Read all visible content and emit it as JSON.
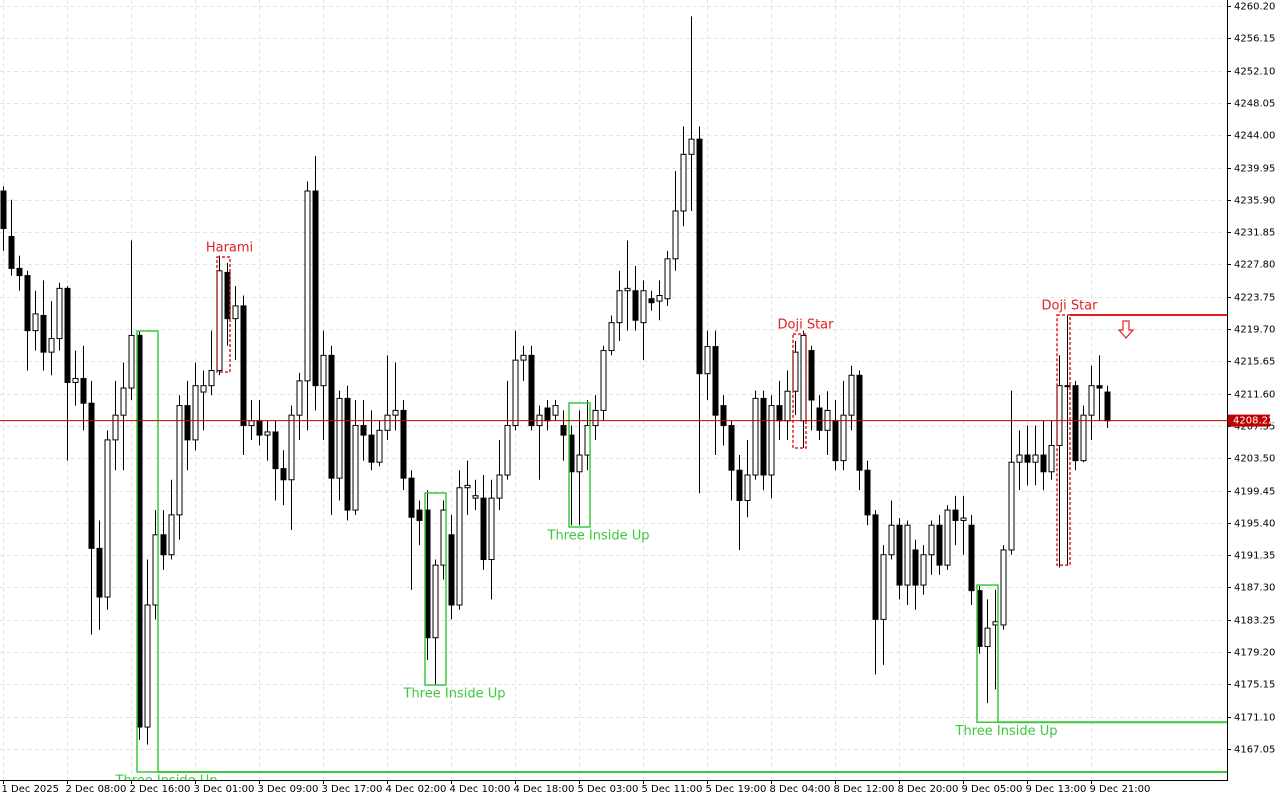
{
  "chart_data": {
    "type": "candlestick",
    "open": [
      4237.0,
      4231.3,
      4227.3,
      4226.4,
      4219.5,
      4221.4,
      4216.8,
      4218.5,
      4224.8,
      4213.0,
      4213.5,
      4210.4,
      4192.2,
      4186.1,
      4205.8,
      4208.9,
      4212.3,
      4218.9,
      4169.8,
      4185.1,
      4193.9,
      4191.4,
      4196.4,
      4210.1,
      4205.8,
      4211.8,
      4212.6,
      4214.5,
      4226.8,
      4221.0,
      4222.6,
      4207.6,
      4208.2,
      4206.4,
      4206.8,
      4202.2,
      4200.8,
      4208.9,
      4213.2,
      4237.0,
      4212.6,
      4216.4,
      4201.0,
      4211.0,
      4197.0,
      4207.6,
      4206.4,
      4203.0,
      4207.0,
      4208.9,
      4209.5,
      4201.0,
      4197.0,
      4197.0,
      4181.0,
      4190.1,
      4193.9,
      4185.1,
      4199.8,
      4198.5,
      4198.5,
      4190.8,
      4198.5,
      4201.4,
      4207.6,
      4215.8,
      4216.4,
      4207.6,
      4209.8,
      4208.9,
      4207.6,
      4206.4,
      4201.8,
      4203.9,
      4207.6,
      4209.5,
      4217.0,
      4220.5,
      4224.5,
      4224.5,
      4220.5,
      4223.5,
      4223.2,
      4223.5,
      4228.5,
      4234.5,
      4241.6,
      4243.5,
      4214.1,
      4217.5,
      4210.1,
      4207.6,
      4202.0,
      4198.2,
      4201.4,
      4211.0,
      4201.4,
      4210.1,
      4208.2,
      4211.9,
      4208.2,
      4217.0,
      4209.8,
      4207.0,
      4208.2,
      4203.2,
      4208.9,
      4213.9,
      4202.0,
      4196.4,
      4183.3,
      4191.4,
      4195.1,
      4187.6,
      4192.0,
      4187.6,
      4191.4,
      4195.1,
      4190.1,
      4197.0,
      4195.7,
      4195.1,
      4186.9,
      4179.9,
      4182.6,
      4182.6,
      4192.0,
      4203.0,
      4203.9,
      4203.0,
      4203.9,
      4201.8,
      4205.1,
      4212.6,
      4212.6,
      4203.2,
      4208.9,
      4212.6,
      4211.8
    ],
    "high": [
      4237.6,
      4235.9,
      4228.9,
      4227.0,
      4224.5,
      4225.8,
      4223.2,
      4225.5,
      4225.1,
      4217.0,
      4217.6,
      4213.2,
      4195.7,
      4207.0,
      4213.2,
      4215.5,
      4230.8,
      4219.5,
      4190.8,
      4197.0,
      4197.0,
      4200.8,
      4211.4,
      4213.2,
      4215.5,
      4214.5,
      4219.5,
      4228.9,
      4228.0,
      4225.1,
      4223.9,
      4210.8,
      4210.8,
      4208.2,
      4208.2,
      4204.5,
      4210.1,
      4214.2,
      4238.2,
      4241.4,
      4219.5,
      4217.6,
      4212.0,
      4212.6,
      4210.8,
      4210.8,
      4209.5,
      4208.2,
      4216.4,
      4215.5,
      4210.8,
      4202.0,
      4198.2,
      4199.5,
      4190.8,
      4198.2,
      4196.4,
      4202.0,
      4203.2,
      4200.8,
      4201.4,
      4200.8,
      4205.8,
      4213.2,
      4219.5,
      4217.6,
      4217.6,
      4210.1,
      4210.8,
      4210.8,
      4209.5,
      4207.6,
      4209.5,
      4210.8,
      4211.4,
      4217.6,
      4221.4,
      4227.0,
      4230.8,
      4227.6,
      4225.8,
      4224.5,
      4225.8,
      4229.5,
      4239.5,
      4245.1,
      4258.9,
      4245.1,
      4219.5,
      4219.5,
      4211.4,
      4208.2,
      4203.9,
      4205.8,
      4212.0,
      4212.0,
      4211.4,
      4213.2,
      4214.5,
      4218.2,
      4219.5,
      4217.6,
      4211.4,
      4211.9,
      4210.8,
      4213.2,
      4215.1,
      4214.5,
      4203.2,
      4197.0,
      4192.6,
      4198.2,
      4196.0,
      4195.7,
      4193.3,
      4192.6,
      4195.7,
      4196.4,
      4197.6,
      4198.8,
      4198.8,
      4196.4,
      4187.5,
      4185.8,
      4187.0,
      4192.6,
      4212.0,
      4207.0,
      4207.6,
      4207.6,
      4208.2,
      4208.2,
      4216.4,
      4221.4,
      4213.2,
      4210.1,
      4215.1,
      4216.4,
      4212.6
    ],
    "low": [
      4229.5,
      4226.4,
      4224.5,
      4214.5,
      4217.0,
      4214.5,
      4213.9,
      4217.0,
      4203.2,
      4210.1,
      4207.0,
      4181.4,
      4182.0,
      4184.5,
      4202.0,
      4202.0,
      4210.8,
      4168.2,
      4167.6,
      4183.3,
      4189.5,
      4190.8,
      4193.3,
      4202.0,
      4204.5,
      4207.0,
      4211.4,
      4213.9,
      4217.6,
      4215.8,
      4203.9,
      4205.8,
      4205.1,
      4203.2,
      4198.2,
      4197.6,
      4194.5,
      4205.8,
      4207.0,
      4209.5,
      4205.8,
      4196.4,
      4198.2,
      4195.7,
      4196.4,
      4203.2,
      4202.0,
      4202.5,
      4205.8,
      4207.0,
      4199.5,
      4187.0,
      4192.6,
      4178.2,
      4175.1,
      4188.3,
      4183.3,
      4184.5,
      4196.4,
      4197.0,
      4189.5,
      4185.8,
      4197.0,
      4200.8,
      4207.0,
      4213.2,
      4207.0,
      4200.8,
      4207.0,
      4208.2,
      4203.2,
      4195.1,
      4195.1,
      4202.0,
      4205.8,
      4208.2,
      4216.4,
      4218.2,
      4219.5,
      4219.5,
      4215.8,
      4222.0,
      4220.8,
      4222.6,
      4227.0,
      4232.6,
      4234.5,
      4199.1,
      4210.8,
      4203.9,
      4205.1,
      4198.2,
      4192.0,
      4196.1,
      4200.8,
      4199.5,
      4198.5,
      4205.8,
      4205.8,
      4208.9,
      4204.8,
      4207.0,
      4205.8,
      4203.9,
      4202.0,
      4202.0,
      4207.0,
      4199.5,
      4195.1,
      4176.4,
      4177.6,
      4190.8,
      4185.8,
      4185.1,
      4184.5,
      4186.4,
      4188.9,
      4188.9,
      4189.5,
      4192.6,
      4191.4,
      4185.1,
      4179.0,
      4172.8,
      4174.5,
      4182.0,
      4191.4,
      4199.5,
      4200.1,
      4200.1,
      4199.5,
      4200.8,
      4189.8,
      4190.1,
      4202.0,
      4203.0,
      4205.8,
      4208.2,
      4207.3
    ],
    "close": [
      4232.3,
      4227.3,
      4226.4,
      4219.5,
      4221.6,
      4216.8,
      4218.5,
      4224.8,
      4213.0,
      4213.5,
      4210.4,
      4192.2,
      4186.1,
      4205.8,
      4208.9,
      4212.3,
      4218.9,
      4169.8,
      4185.1,
      4193.9,
      4191.4,
      4196.4,
      4210.1,
      4205.8,
      4212.6,
      4212.6,
      4214.5,
      4227.0,
      4221.0,
      4222.6,
      4207.6,
      4208.2,
      4206.4,
      4206.8,
      4202.2,
      4200.8,
      4208.9,
      4213.2,
      4237.0,
      4212.6,
      4216.4,
      4201.0,
      4211.0,
      4197.0,
      4207.6,
      4206.4,
      4203.0,
      4207.0,
      4208.9,
      4209.5,
      4201.0,
      4196.1,
      4195.7,
      4181.0,
      4190.1,
      4197.0,
      4185.1,
      4199.8,
      4200.1,
      4198.8,
      4190.8,
      4198.5,
      4201.4,
      4207.6,
      4215.8,
      4216.4,
      4207.6,
      4208.9,
      4208.2,
      4210.1,
      4206.4,
      4201.8,
      4203.9,
      4207.6,
      4209.5,
      4217.0,
      4220.5,
      4224.5,
      4224.8,
      4220.8,
      4224.5,
      4223.0,
      4223.9,
      4228.5,
      4234.5,
      4241.6,
      4243.5,
      4214.1,
      4217.5,
      4208.9,
      4207.6,
      4202.0,
      4198.2,
      4201.4,
      4211.0,
      4201.4,
      4210.1,
      4208.2,
      4211.9,
      4216.8,
      4218.9,
      4210.8,
      4207.0,
      4209.5,
      4203.2,
      4208.9,
      4213.9,
      4202.0,
      4196.4,
      4183.3,
      4191.4,
      4195.1,
      4187.6,
      4195.1,
      4187.6,
      4191.4,
      4195.1,
      4190.1,
      4197.0,
      4195.7,
      4196.0,
      4186.9,
      4179.9,
      4182.2,
      4183.0,
      4192.0,
      4203.0,
      4203.9,
      4203.0,
      4203.9,
      4201.8,
      4205.1,
      4212.6,
      4212.5,
      4203.2,
      4208.9,
      4212.6,
      4212.3,
      4208.2
    ],
    "up_color": "#ffffff",
    "down_color": "#000000",
    "wick_color": "#000000",
    "xticks": [
      {
        "value": 0,
        "label": "1 Dec 2025"
      },
      {
        "value": 8,
        "label": "2 Dec 08:00"
      },
      {
        "value": 16,
        "label": "2 Dec 16:00"
      },
      {
        "value": 24,
        "label": "3 Dec 01:00"
      },
      {
        "value": 32,
        "label": "3 Dec 09:00"
      },
      {
        "value": 40,
        "label": "3 Dec 17:00"
      },
      {
        "value": 48,
        "label": "4 Dec 02:00"
      },
      {
        "value": 56,
        "label": "4 Dec 10:00"
      },
      {
        "value": 64,
        "label": "4 Dec 18:00"
      },
      {
        "value": 72,
        "label": "5 Dec 03:00"
      },
      {
        "value": 80,
        "label": "5 Dec 11:00"
      },
      {
        "value": 88,
        "label": "5 Dec 19:00"
      },
      {
        "value": 96,
        "label": "8 Dec 04:00"
      },
      {
        "value": 104,
        "label": "8 Dec 12:00"
      },
      {
        "value": 112,
        "label": "8 Dec 20:00"
      },
      {
        "value": 120,
        "label": "9 Dec 05:00"
      },
      {
        "value": 128,
        "label": "9 Dec 13:00"
      },
      {
        "value": 136,
        "label": "9 Dec 21:00"
      }
    ],
    "ylim": [
      4163.16,
      4260.95
    ],
    "yticks": [
      {
        "value": 4260.2,
        "label": "4260.20"
      },
      {
        "value": 4256.15,
        "label": "4256.15"
      },
      {
        "value": 4252.1,
        "label": "4252.10"
      },
      {
        "value": 4248.05,
        "label": "4248.05"
      },
      {
        "value": 4244.0,
        "label": "4244.00"
      },
      {
        "value": 4239.95,
        "label": "4239.95"
      },
      {
        "value": 4235.9,
        "label": "4235.90"
      },
      {
        "value": 4231.85,
        "label": "4231.85"
      },
      {
        "value": 4227.8,
        "label": "4227.80"
      },
      {
        "value": 4223.75,
        "label": "4223.75"
      },
      {
        "value": 4219.7,
        "label": "4219.70"
      },
      {
        "value": 4215.65,
        "label": "4215.65"
      },
      {
        "value": 4211.6,
        "label": "4211.60"
      },
      {
        "value": 4207.55,
        "label": "4207.55"
      },
      {
        "value": 4203.5,
        "label": "4203.50"
      },
      {
        "value": 4199.45,
        "label": "4199.45"
      },
      {
        "value": 4195.4,
        "label": "4195.40"
      },
      {
        "value": 4191.35,
        "label": "4191.35"
      },
      {
        "value": 4187.3,
        "label": "4187.30"
      },
      {
        "value": 4183.25,
        "label": "4183.25"
      },
      {
        "value": 4179.2,
        "label": "4179.20"
      },
      {
        "value": 4175.15,
        "label": "4175.15"
      },
      {
        "value": 4171.1,
        "label": "4171.10"
      },
      {
        "value": 4167.05,
        "label": "4167.05"
      }
    ],
    "grid": true,
    "last_price": 4208.22,
    "last_price_color": "#c00000",
    "patterns": [
      {
        "name": "Harami",
        "color": "#e02020",
        "from": 27,
        "to": 28,
        "high": 4228.73,
        "low": 4214.31
      },
      {
        "name": "Three Inside Up",
        "color": "#3cc83c",
        "from": 17,
        "to": 19,
        "high": 4219.45,
        "low": 4164.17,
        "extend": "low"
      },
      {
        "name": "Three Inside Up",
        "color": "#3cc83c",
        "from": 53,
        "to": 55,
        "high": 4199.15,
        "low": 4175.07
      },
      {
        "name": "Three Inside Up",
        "color": "#3cc83c",
        "from": 71,
        "to": 73,
        "high": 4210.43,
        "low": 4194.88
      },
      {
        "name": "Doji Star",
        "color": "#e02020",
        "from": 99,
        "to": 100,
        "high": 4219.08,
        "low": 4204.79
      },
      {
        "name": "Three Inside Up",
        "color": "#3cc83c",
        "from": 122,
        "to": 124,
        "high": 4187.6,
        "low": 4170.4,
        "extend": "low"
      },
      {
        "name": "Doji Star",
        "color": "#e02020",
        "from": 132,
        "to": 133,
        "high": 4221.46,
        "low": 4190.1,
        "extend": "high",
        "arrow": "down"
      }
    ]
  }
}
